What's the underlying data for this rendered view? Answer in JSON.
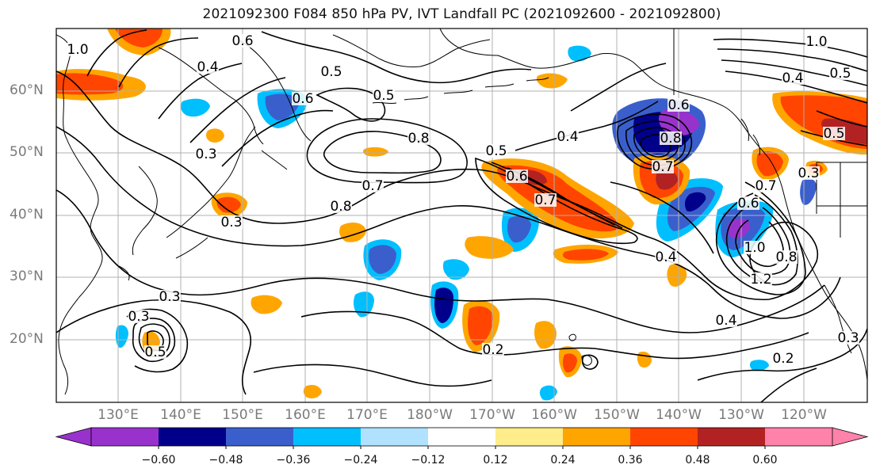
{
  "title": "2021092300 F084 850 hPa PV, IVT Landfall PC (2021092600 - 2021092800)",
  "lat_labels": [
    "60°N",
    "50°N",
    "40°N",
    "30°N",
    "20°N"
  ],
  "lon_labels": [
    "130°E",
    "140°E",
    "150°E",
    "160°E",
    "170°E",
    "180°W",
    "170°W",
    "160°W",
    "150°W",
    "140°W",
    "130°W",
    "120°W"
  ],
  "colorbar": {
    "tick_labels": [
      "−0.60",
      "−0.48",
      "−0.36",
      "−0.24",
      "−0.12",
      "0.12",
      "0.24",
      "0.36",
      "0.48",
      "0.60"
    ],
    "colors": [
      "#9932cc",
      "#00008b",
      "#3a5fcd",
      "#00bfff",
      "#b0e2ff",
      "#ffffff",
      "#ffec8b",
      "#ffa500",
      "#ff4500",
      "#b22222",
      "#ff82ab"
    ]
  },
  "contour_labels": [
    "0.6",
    "1.0",
    "0.4",
    "0.5",
    "0.6",
    "0.5",
    "0.8",
    "0.3",
    "0.3",
    "0.8",
    "0.7",
    "0.5",
    "0.6",
    "0.7",
    "0.4",
    "0.8",
    "0.6",
    "0.7",
    "0.7",
    "0.6",
    "1.0",
    "0.8",
    "1.2",
    "0.4",
    "0.4",
    "0.3",
    "0.3",
    "0.3",
    "0.5",
    "0.2",
    "0.2",
    "0.3",
    "0.5",
    "0.4",
    "0.5",
    "1.0"
  ],
  "colors": {
    "grid": "#b0b0b0",
    "coast": "#000000",
    "contour": "#000000",
    "axis_label": "#7a7a7a"
  }
}
